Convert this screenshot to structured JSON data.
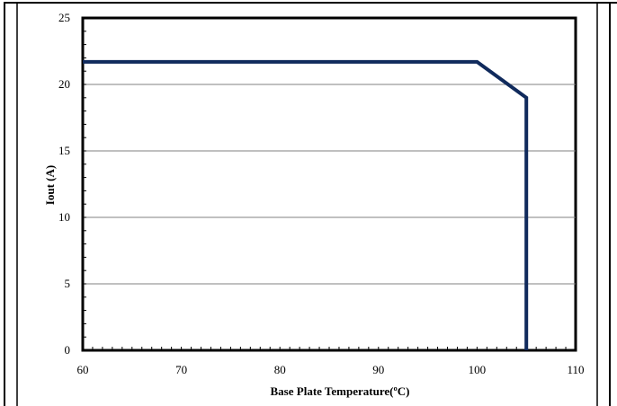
{
  "chart_data": {
    "type": "line",
    "title": "",
    "xlabel": "Base Plate Temperature(ºC)",
    "ylabel": "Iout (A)",
    "xlim": [
      60,
      110
    ],
    "ylim": [
      0,
      25
    ],
    "x_ticks": [
      "60",
      "70",
      "80",
      "90",
      "100",
      "110"
    ],
    "y_ticks": [
      "0",
      "5",
      "10",
      "15",
      "20",
      "25"
    ],
    "grid": {
      "horizontal": true,
      "vertical": false
    },
    "legend": "none",
    "series": [
      {
        "color": "#102a5c",
        "points": [
          {
            "x": 60,
            "y": 21.7
          },
          {
            "x": 100,
            "y": 21.7
          },
          {
            "x": 105,
            "y": 19.0
          },
          {
            "x": 105,
            "y": 0
          }
        ]
      }
    ],
    "colors": {
      "line": "#102a5c",
      "grid": "#808080",
      "frame": "#000000"
    }
  }
}
